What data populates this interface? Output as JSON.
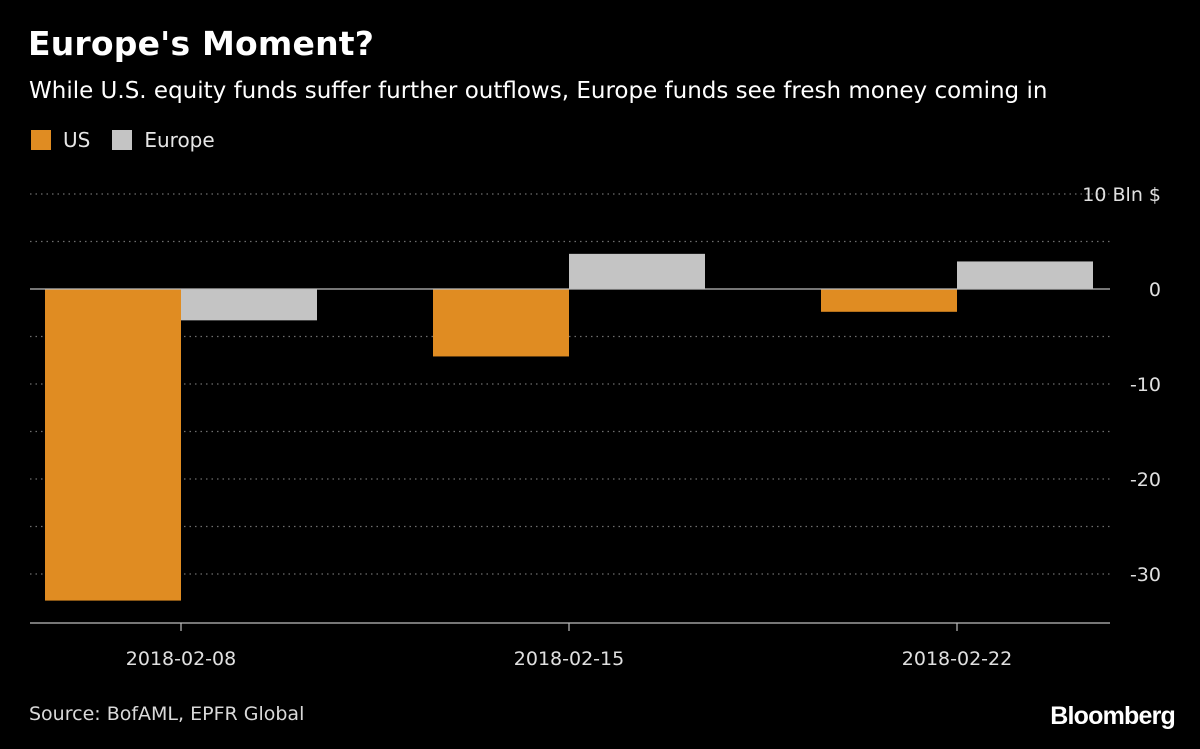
{
  "colors": {
    "background": "#000000",
    "us": "#e08c22",
    "europe": "#c4c4c4",
    "grid": "#6e6e6e",
    "axis": "#bdbdbd",
    "tick_text": "#e0e0e0"
  },
  "header": {
    "title": "Europe's Moment?",
    "subtitle": "While U.S. equity funds suffer further outflows, Europe funds see fresh money coming in"
  },
  "legend": {
    "items": [
      {
        "label": "US",
        "color": "#e08c22"
      },
      {
        "label": "Europe",
        "color": "#c4c4c4"
      }
    ]
  },
  "footer": {
    "source": "Source: BofAML, EPFR Global",
    "brand": "Bloomberg"
  },
  "chart_data": {
    "type": "bar",
    "title": "Europe's Moment?",
    "subtitle": "While U.S. equity funds suffer further outflows, Europe funds see fresh money coming in",
    "categories": [
      "2018-02-08",
      "2018-02-15",
      "2018-02-22"
    ],
    "series": [
      {
        "name": "US",
        "values": [
          -32.8,
          -7.1,
          -2.4
        ]
      },
      {
        "name": "Europe",
        "values": [
          -3.3,
          3.7,
          2.9
        ]
      }
    ],
    "y_unit_label": "10 Bln $",
    "yticks": [
      10,
      0,
      -10,
      -20,
      -30
    ],
    "ytick_labels": [
      "10 Bln $",
      "0",
      "-10",
      "-20",
      "-30"
    ],
    "ylim": [
      -34.5,
      10.5
    ],
    "grid": true,
    "grid_style": "dotted",
    "legend_position": "top-left",
    "y_axis_position": "right"
  }
}
